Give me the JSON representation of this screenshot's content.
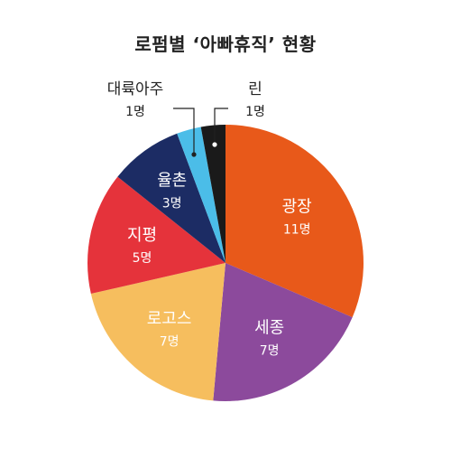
{
  "chart_data": {
    "type": "pie",
    "title": "로펌별 ‘아빠휴직’ 현황",
    "unit": "명",
    "slices": [
      {
        "name": "광장",
        "value": 11,
        "value_label": "11명",
        "color": "#E8591A"
      },
      {
        "name": "세종",
        "value": 7,
        "value_label": "7명",
        "color": "#8C4A9C"
      },
      {
        "name": "로고스",
        "value": 7,
        "value_label": "7명",
        "color": "#F6BE5E"
      },
      {
        "name": "지평",
        "value": 5,
        "value_label": "5명",
        "color": "#E5333B"
      },
      {
        "name": "율촌",
        "value": 3,
        "value_label": "3명",
        "color": "#1C2C64"
      },
      {
        "name": "대륙아주",
        "value": 1,
        "value_label": "1명",
        "color": "#4BBDE8"
      },
      {
        "name": "린",
        "value": 1,
        "value_label": "1명",
        "color": "#1A1A1A"
      }
    ]
  }
}
